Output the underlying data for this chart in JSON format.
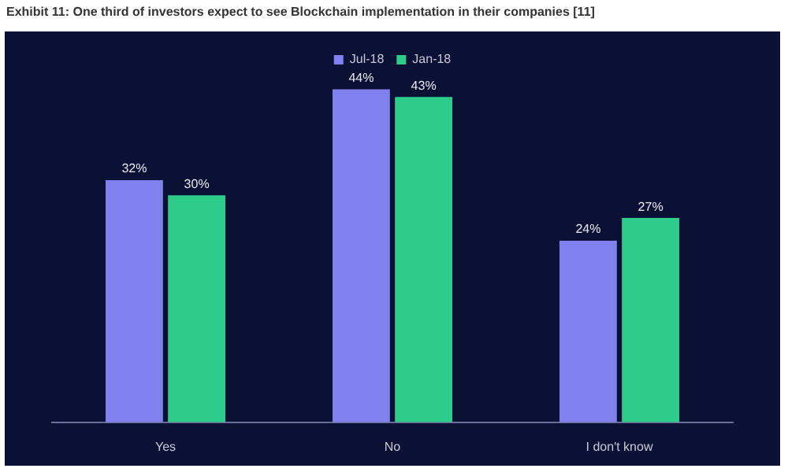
{
  "chart_data": {
    "type": "bar",
    "title": "Exhibit 11: One third of investors expect to see Blockchain implementation in their companies [11]",
    "categories": [
      "Yes",
      "No",
      "I don't know"
    ],
    "series": [
      {
        "name": "Jul-18",
        "color": "#8080ee",
        "values": [
          32,
          44,
          24
        ],
        "value_labels": [
          "32%",
          "44%",
          "24%"
        ]
      },
      {
        "name": "Jan-18",
        "color": "#2ecc8a",
        "values": [
          30,
          43,
          27
        ],
        "value_labels": [
          "30%",
          "43%",
          "27%"
        ]
      }
    ],
    "legend": "top"
  }
}
